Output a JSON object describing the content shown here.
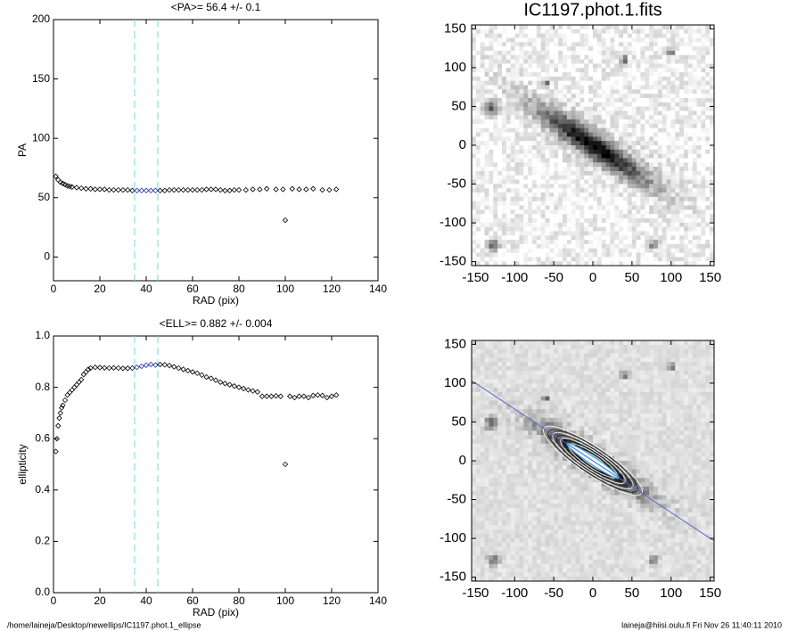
{
  "chart_data": [
    {
      "type": "scatter",
      "title": "<PA>=  56.4 +/-   0.1",
      "x_label": "RAD (pix)",
      "y_label": "PA",
      "x": [
        1,
        2,
        3,
        4,
        5,
        6,
        7,
        8,
        10,
        12,
        14,
        16,
        18,
        20,
        22,
        24,
        26,
        28,
        30,
        32,
        34,
        36,
        38,
        40,
        42,
        44,
        46,
        48,
        50,
        52,
        54,
        56,
        58,
        60,
        62,
        64,
        66,
        68,
        70,
        72,
        74,
        76,
        78,
        80,
        83,
        86,
        89,
        92,
        96,
        99,
        100,
        103,
        106,
        109,
        112,
        116,
        119,
        122
      ],
      "values": [
        68,
        65,
        63,
        62,
        61,
        60,
        59.5,
        59,
        58.5,
        58,
        57.5,
        57.5,
        57,
        57,
        57,
        56.5,
        56.5,
        56.5,
        56.5,
        56.5,
        56,
        56,
        56,
        56,
        56,
        56,
        56,
        56,
        56.5,
        56.5,
        56.5,
        56.5,
        56.5,
        56.5,
        56.5,
        56.5,
        57,
        57,
        57,
        56.5,
        56,
        56,
        56.5,
        56.5,
        56.5,
        57,
        57,
        57.5,
        57,
        57,
        31,
        57.5,
        57,
        57,
        57.5,
        56.5,
        56.5,
        57
      ],
      "color": "#000000",
      "highlight_color": "#2233aa",
      "vlines": [
        35,
        45
      ],
      "vline_color": "#66dddd",
      "xlim": [
        0,
        140
      ],
      "xticks": [
        0,
        20,
        40,
        60,
        80,
        100,
        120,
        140
      ],
      "ylim": [
        -20,
        200
      ],
      "yticks": [
        0,
        50,
        100,
        150,
        200
      ]
    },
    {
      "type": "scatter",
      "title": "<ELL>= 0.882 +/-  0.004",
      "x_label": "RAD (pix)",
      "y_label": "ellipticity",
      "x": [
        1,
        1.5,
        2,
        2.5,
        3,
        3.5,
        4,
        5,
        6,
        7,
        8,
        9,
        10,
        11,
        12,
        13,
        14,
        15,
        16,
        18,
        20,
        22,
        24,
        26,
        28,
        30,
        32,
        34,
        36,
        38,
        40,
        42,
        44,
        46,
        48,
        50,
        52,
        54,
        56,
        58,
        60,
        62,
        64,
        66,
        68,
        70,
        72,
        74,
        76,
        78,
        80,
        82,
        84,
        86,
        88,
        90,
        92,
        94,
        96,
        98,
        100,
        102,
        104,
        106,
        108,
        110,
        112,
        114,
        116,
        118,
        120,
        122
      ],
      "values": [
        0.55,
        0.6,
        0.65,
        0.68,
        0.7,
        0.72,
        0.73,
        0.75,
        0.77,
        0.78,
        0.79,
        0.8,
        0.81,
        0.82,
        0.83,
        0.85,
        0.86,
        0.87,
        0.875,
        0.878,
        0.877,
        0.876,
        0.875,
        0.876,
        0.875,
        0.874,
        0.874,
        0.875,
        0.878,
        0.882,
        0.886,
        0.889,
        0.887,
        0.889,
        0.888,
        0.885,
        0.88,
        0.875,
        0.87,
        0.865,
        0.86,
        0.855,
        0.848,
        0.84,
        0.835,
        0.828,
        0.82,
        0.815,
        0.81,
        0.805,
        0.8,
        0.795,
        0.79,
        0.786,
        0.782,
        0.765,
        0.765,
        0.765,
        0.767,
        0.765,
        0.5,
        0.765,
        0.76,
        0.765,
        0.765,
        0.76,
        0.768,
        0.77,
        0.768,
        0.76,
        0.765,
        0.77
      ],
      "color": "#000000",
      "highlight_color": "#2233aa",
      "vlines": [
        35,
        45
      ],
      "vline_color": "#66dddd",
      "xlim": [
        0,
        140
      ],
      "xticks": [
        0,
        20,
        40,
        60,
        80,
        100,
        120,
        140
      ],
      "ylim": [
        0,
        1
      ],
      "yticks": [
        {
          "value": 0,
          "label": "0.0"
        },
        0.2,
        0.4,
        0.6,
        0.8,
        {
          "value": 1,
          "label": "1.0"
        }
      ]
    },
    {
      "type": "image",
      "title": "IC1197.phot.1.fits",
      "xlim": [
        -155,
        155
      ],
      "xticks": [
        -150,
        -100,
        -50,
        0,
        50,
        100,
        150
      ],
      "ylim": [
        -155,
        155
      ],
      "yticks": [
        -150,
        -100,
        -50,
        0,
        50,
        100,
        150
      ]
    },
    {
      "type": "image",
      "contours": true,
      "line": {
        "x": [
          -155,
          155
        ],
        "values": [
          103.3,
          -103.3
        ],
        "color": "#5566cc"
      },
      "xlim": [
        -155,
        155
      ],
      "xticks": [
        -150,
        -100,
        -50,
        0,
        50,
        100,
        150
      ],
      "ylim": [
        -155,
        155
      ],
      "yticks": [
        -150,
        -100,
        -50,
        0,
        50,
        100,
        150
      ]
    }
  ],
  "footer": {
    "left": "/home/laineja/Desktop/newellips/IC1197.phot.1_ellipse",
    "right": "laineja@hiisi.oulu.fi  Fri Nov 26 11:40:11 2010"
  }
}
